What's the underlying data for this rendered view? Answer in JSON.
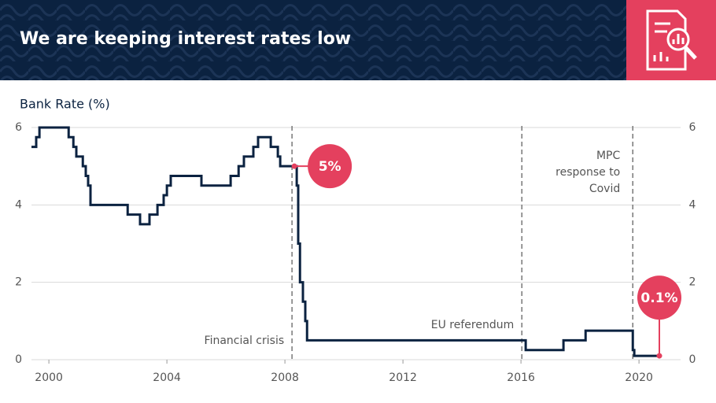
{
  "chart_data": {
    "type": "line",
    "title": "We are keeping interest rates low",
    "y_label": "Bank Rate (%)",
    "xlim": [
      1999.41,
      2021.41
    ],
    "xticks": [
      2000,
      2004,
      2008,
      2012,
      2016,
      2020
    ],
    "ylim": [
      0,
      6
    ],
    "yticks": [
      0,
      2,
      4,
      6
    ],
    "y2lim": [
      0,
      6
    ],
    "y2ticks": [
      0,
      2,
      4,
      6
    ],
    "grid": true,
    "series": [
      {
        "color": "#0b2240",
        "x": [
          1999.41,
          1999.57,
          1999.57,
          1999.68,
          1999.68,
          2000.67,
          2000.67,
          2000.83,
          2000.83,
          2000.93,
          2000.93,
          2001.15,
          2001.15,
          2001.25,
          2001.25,
          2001.33,
          2001.33,
          2001.41,
          2001.41,
          2002.67,
          2002.67,
          2003.09,
          2003.09,
          2003.41,
          2003.41,
          2003.68,
          2003.68,
          2003.89,
          2003.89,
          2004.0,
          2004.0,
          2004.13,
          2004.13,
          2005.17,
          2005.17,
          2006.16,
          2006.16,
          2006.43,
          2006.43,
          2006.61,
          2006.61,
          2006.93,
          2006.93,
          2007.09,
          2007.09,
          2007.52,
          2007.52,
          2007.76,
          2007.76,
          2007.84,
          2007.84,
          2008.4,
          2008.4,
          2008.45,
          2008.45,
          2008.51,
          2008.51,
          2008.61,
          2008.61,
          2008.69,
          2008.69,
          2008.75,
          2008.75,
          2016.16,
          2016.16,
          2017.44,
          2017.44,
          2018.19,
          2018.19,
          2019.79,
          2019.79,
          2019.84,
          2019.84,
          2020.69
        ],
        "values": [
          5.5,
          5.5,
          5.75,
          5.75,
          6,
          6,
          5.75,
          5.75,
          5.5,
          5.5,
          5.25,
          5.25,
          5,
          5,
          4.75,
          4.75,
          4.5,
          4.5,
          4,
          4,
          3.75,
          3.75,
          3.5,
          3.5,
          3.75,
          3.75,
          4,
          4,
          4.25,
          4.25,
          4.5,
          4.5,
          4.75,
          4.75,
          4.5,
          4.5,
          4.75,
          4.75,
          5,
          5,
          5.25,
          5.25,
          5.5,
          5.5,
          5.75,
          5.75,
          5.5,
          5.5,
          5.25,
          5.25,
          5,
          5,
          4.5,
          4.5,
          3,
          3,
          2,
          2,
          1.5,
          1.5,
          1,
          1,
          0.5,
          0.5,
          0.25,
          0.25,
          0.5,
          0.5,
          0.75,
          0.75,
          0.25,
          0.25,
          0.1,
          0.1
        ]
      }
    ],
    "events": [
      {
        "x": 2008.24,
        "label": [
          "Financial crisis"
        ]
      },
      {
        "x": 2016.03,
        "label": [
          "EU referendum"
        ]
      },
      {
        "x": 2019.79,
        "label": [
          "MPC",
          "response to",
          "Covid"
        ]
      }
    ],
    "callouts": [
      {
        "x": 2008.32,
        "y": 5,
        "label": "5%"
      },
      {
        "x": 2020.69,
        "y": 0.1,
        "label": "0.1%"
      }
    ],
    "callout_color": "#e4405e"
  }
}
